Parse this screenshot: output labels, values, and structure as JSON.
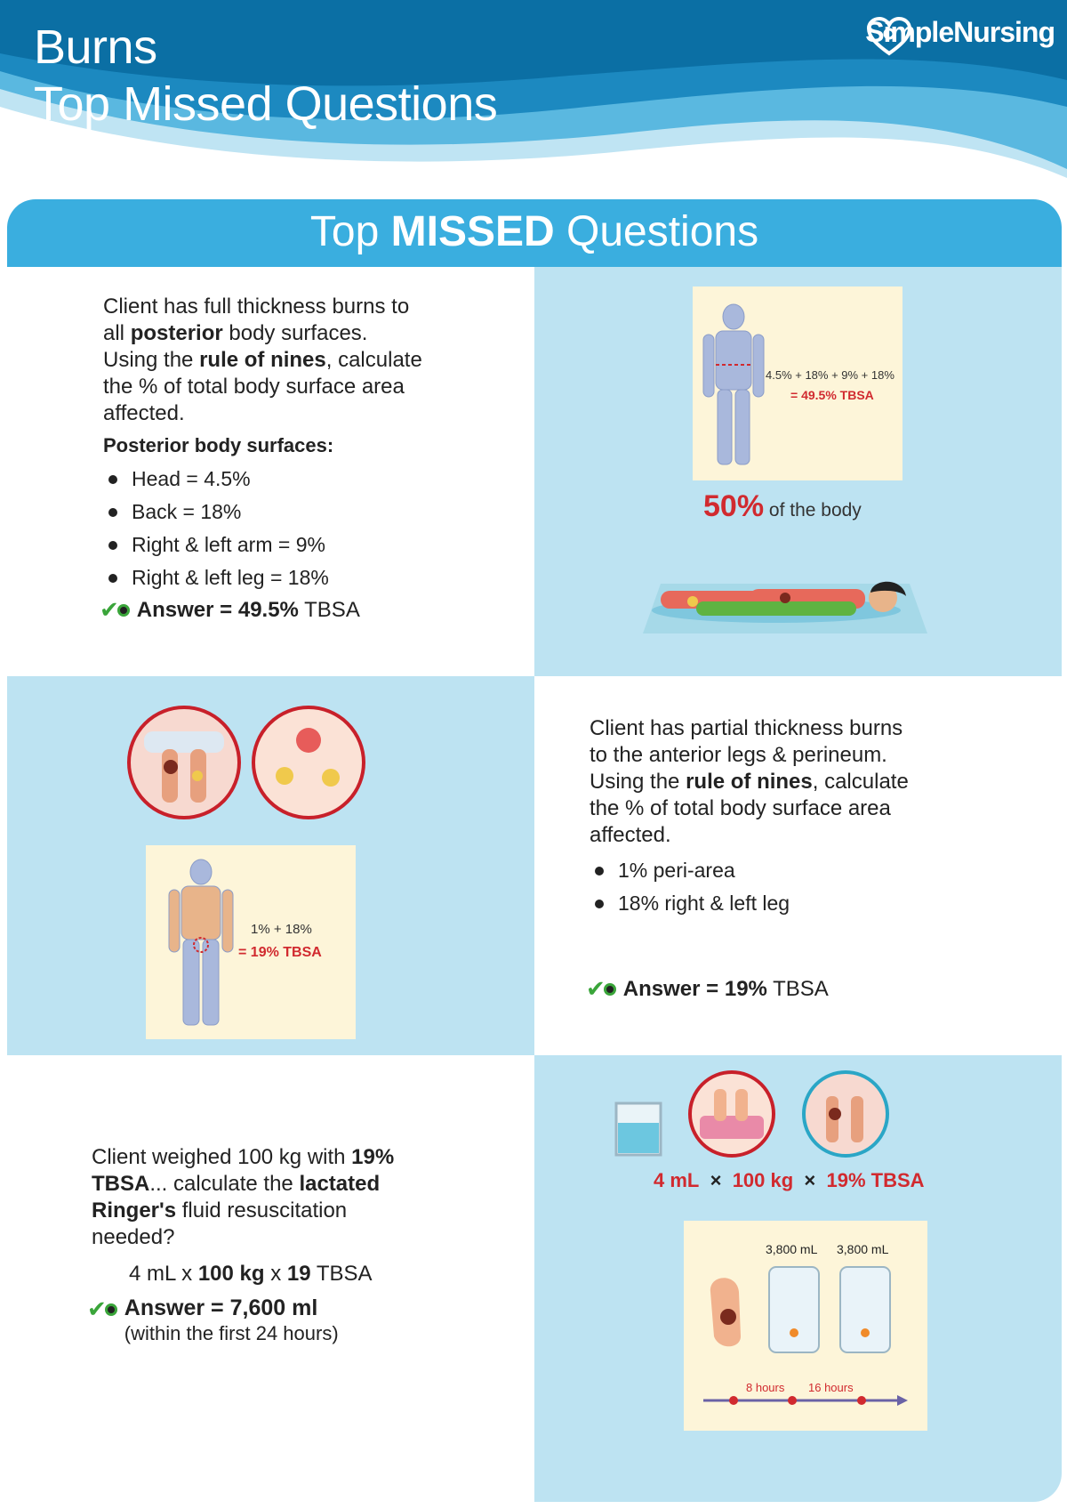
{
  "header": {
    "title_line1": "Burns",
    "title_line2": "Top Missed Questions",
    "brand": "SimpleNursing",
    "colors": {
      "header_blue": "#0b6fa4",
      "accent_blue": "#3aaedf",
      "panel_blue": "#bde3f2",
      "red": "#d12a2f",
      "green": "#3aa53a"
    }
  },
  "banner": {
    "prefix": "Top ",
    "bold": "MISSED",
    "suffix": " Questions"
  },
  "q1": {
    "p1": "Client has full thickness burns to all ",
    "p1_bold": "posterior",
    "p1_end": " body surfaces.",
    "p2": "Using the ",
    "p2_bold": "rule of nines",
    "p2_end": ", calculate the % of total body surface area affected.",
    "subheading": "Posterior body surfaces:",
    "items": [
      "Head = 4.5%",
      "Back = 18%",
      "Right & left arm = 9%",
      "Right & left leg = 18%"
    ],
    "answer_label": "Answer = 49.5%",
    "answer_unit": " TBSA",
    "figure_eq1": "4.5% + 18% + 9% + 18%",
    "figure_eq2": "= 49.5% TBSA",
    "big_percent": "50%",
    "big_percent_caption": " of the body"
  },
  "q2": {
    "p1": "Client has partial thickness burns to the anterior legs & perineum.",
    "p2": "Using the ",
    "p2_bold": "rule of nines",
    "p2_end": ", calculate the % of total body surface area affected.",
    "items": [
      "1% peri-area",
      "18% right & left leg"
    ],
    "answer_label": "Answer = 19%",
    "answer_unit": " TBSA",
    "figure_eq1": "1% + 18%",
    "figure_eq2": "= 19% TBSA"
  },
  "q3": {
    "p1": "Client weighed 100 kg with ",
    "p1_bold": "19% TBSA",
    "p1_mid": "... calculate the ",
    "p1_bold2": "lactated Ringer's",
    "p1_end": " fluid resuscitation needed?",
    "formula_a": "4 mL x ",
    "formula_b": "100 kg",
    "formula_c": " x ",
    "formula_d": "19",
    "formula_e": " TBSA",
    "answer_label": "Answer = 7,600 ml",
    "answer_note": "(within the first 24 hours)",
    "eq_a": "4 mL",
    "eq_x": "×",
    "eq_b": "100 kg",
    "eq_c": "19% TBSA",
    "bag1": "3,800 mL",
    "bag2": "3,800 mL",
    "t1": "8 hours",
    "t2": "16 hours"
  }
}
